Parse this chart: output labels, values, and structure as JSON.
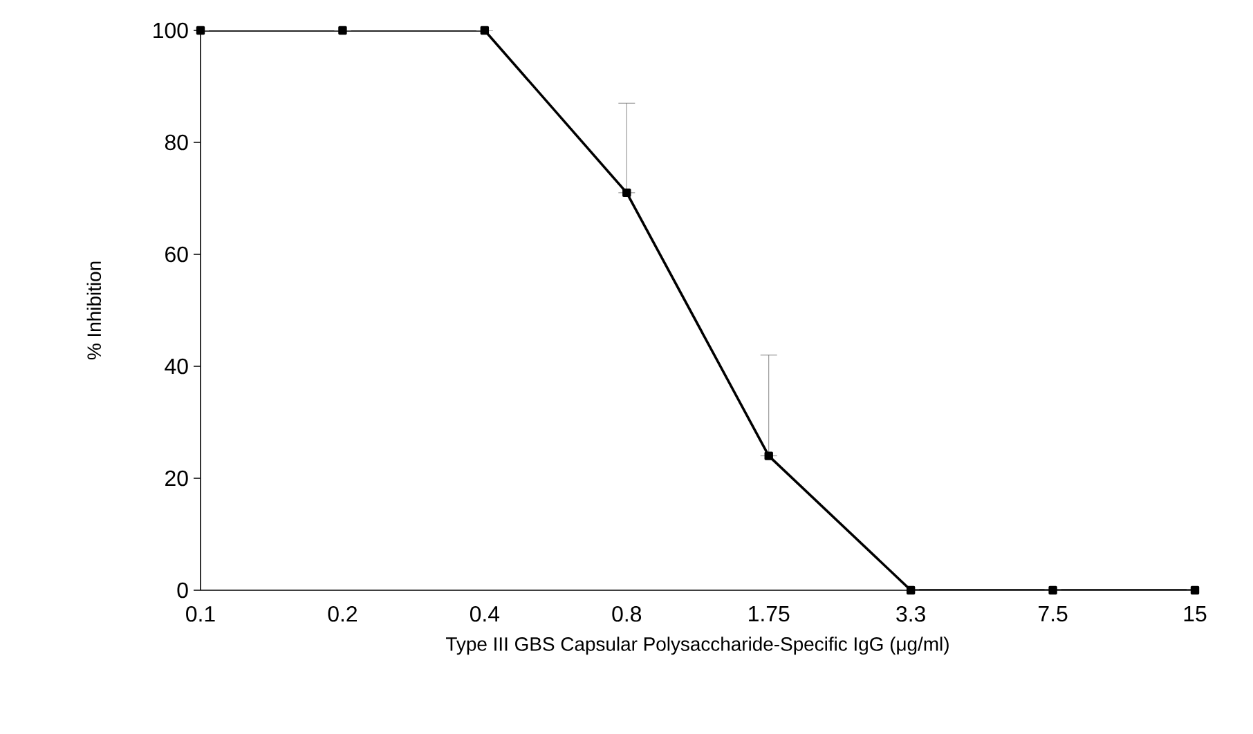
{
  "chart_data": {
    "type": "line",
    "xlabel": "Type III GBS Capsular Polysaccharide-Specific IgG (μg/ml)",
    "ylabel": "% Inhibition",
    "categories": [
      "0.1",
      "0.2",
      "0.4",
      "0.8",
      "1.75",
      "3.3",
      "7.5",
      "15"
    ],
    "series": [
      {
        "color": "#000000",
        "values": [
          100,
          100,
          100,
          71,
          24,
          0,
          0,
          0
        ],
        "errors": [
          null,
          null,
          null,
          [
            71,
            87
          ],
          [
            24,
            42
          ],
          null,
          null,
          null
        ]
      }
    ],
    "ylim": [
      0,
      100
    ],
    "yticks": [
      0,
      20,
      40,
      60,
      80,
      100
    ],
    "grid": false,
    "marker": "square",
    "line_style": "solid"
  }
}
